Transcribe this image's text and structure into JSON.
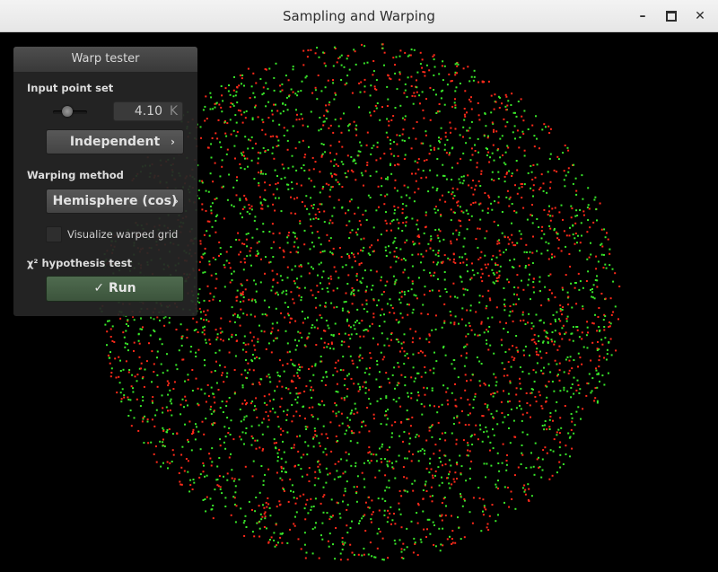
{
  "window": {
    "title": "Sampling and Warping",
    "controls": [
      "minimize-icon",
      "maximize-icon",
      "close-icon"
    ]
  },
  "panel": {
    "title": "Warp tester",
    "input_point_set_label": "Input point set",
    "point_count_value": "4.10",
    "point_count_unit": "K",
    "point_count_slider_level": 0.45,
    "sampler_button": "Independent",
    "warping_method_label": "Warping method",
    "warping_method_button": "Hemisphere (cos)",
    "visualize_grid_label": "Visualize warped grid",
    "visualize_grid_checked": false,
    "chi2_label": "χ² hypothesis test",
    "run_icon": "✓",
    "run_label": "Run"
  },
  "visualization": {
    "point_colors": [
      "#ff2a1a",
      "#39e62a"
    ],
    "background": "#000000"
  }
}
